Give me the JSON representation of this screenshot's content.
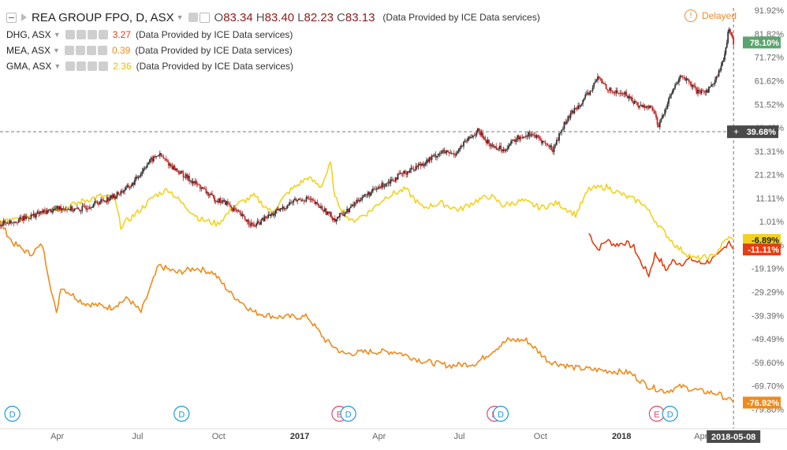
{
  "chart_data": {
    "type": "line",
    "title": "REA GROUP FPO, D, ASX",
    "xlabel": "",
    "ylabel": "",
    "y_unit": "%",
    "ylim": [
      -80,
      93
    ],
    "grid": false,
    "legend": "top-left",
    "x_range": [
      "2016-01-27",
      "2018-05-15"
    ],
    "x_tick_labels": [
      {
        "date": "2016-04-01",
        "label": "Apr"
      },
      {
        "date": "2016-07-01",
        "label": "Jul"
      },
      {
        "date": "2016-10-01",
        "label": "Oct"
      },
      {
        "date": "2017-01-01",
        "label": "2017"
      },
      {
        "date": "2017-04-01",
        "label": "Apr"
      },
      {
        "date": "2017-07-01",
        "label": "Jul"
      },
      {
        "date": "2017-10-01",
        "label": "Oct"
      },
      {
        "date": "2018-01-01",
        "label": "2018"
      },
      {
        "date": "2018-04-01",
        "label": "Apr"
      }
    ],
    "y_tick_labels": [
      "91.92%",
      "81.82%",
      "71.72%",
      "61.62%",
      "51.52%",
      "41.42%",
      "31.31%",
      "21.21%",
      "11.11%",
      "1.01%",
      "-9.09%",
      "-19.19%",
      "-29.29%",
      "-39.39%",
      "-49.49%",
      "-59.60%",
      "-69.70%",
      "-79.80%"
    ],
    "crosshair": {
      "date_label": "2018-05-08",
      "value_label": "39.68%",
      "value": 39.68
    },
    "event_markers": [
      {
        "date": "2016-02-10",
        "letter": "D",
        "color": "#1a9ad6"
      },
      {
        "date": "2016-08-20",
        "letter": "D",
        "color": "#1a9ad6"
      },
      {
        "date": "2017-02-15",
        "letter": "E",
        "color": "#e0456e"
      },
      {
        "date": "2017-02-25",
        "letter": "D",
        "color": "#1a9ad6"
      },
      {
        "date": "2017-08-10",
        "letter": "E",
        "color": "#e0456e"
      },
      {
        "date": "2017-08-17",
        "letter": "D",
        "color": "#1a9ad6"
      },
      {
        "date": "2018-02-10",
        "letter": "E",
        "color": "#e0456e"
      },
      {
        "date": "2018-02-25",
        "letter": "D",
        "color": "#1a9ad6"
      }
    ],
    "main_series": {
      "name": "REA GROUP FPO",
      "style": "candlestick",
      "color_up": "#333333",
      "color_down": "#c62828",
      "last_label": "78.10%",
      "badge_color": "#5aa56e",
      "points": [
        [
          "2016-01-27",
          0
        ],
        [
          "2016-02-20",
          2
        ],
        [
          "2016-03-15",
          5
        ],
        [
          "2016-04-05",
          7
        ],
        [
          "2016-04-25",
          6
        ],
        [
          "2016-05-15",
          9
        ],
        [
          "2016-06-05",
          12
        ],
        [
          "2016-06-25",
          17
        ],
        [
          "2016-07-12",
          26
        ],
        [
          "2016-07-25",
          30
        ],
        [
          "2016-08-08",
          25
        ],
        [
          "2016-08-22",
          21
        ],
        [
          "2016-09-10",
          16
        ],
        [
          "2016-09-25",
          11
        ],
        [
          "2016-10-10",
          9
        ],
        [
          "2016-10-25",
          4
        ],
        [
          "2016-11-10",
          -1
        ],
        [
          "2016-11-25",
          3
        ],
        [
          "2016-12-10",
          6
        ],
        [
          "2016-12-25",
          10
        ],
        [
          "2017-01-10",
          11
        ],
        [
          "2017-01-25",
          7
        ],
        [
          "2017-02-10",
          2
        ],
        [
          "2017-02-25",
          6
        ],
        [
          "2017-03-10",
          11
        ],
        [
          "2017-03-25",
          14
        ],
        [
          "2017-04-10",
          18
        ],
        [
          "2017-04-25",
          21
        ],
        [
          "2017-05-10",
          24
        ],
        [
          "2017-05-25",
          27
        ],
        [
          "2017-06-10",
          31
        ],
        [
          "2017-06-25",
          30
        ],
        [
          "2017-07-10",
          36
        ],
        [
          "2017-07-22",
          40
        ],
        [
          "2017-08-05",
          34
        ],
        [
          "2017-08-20",
          32
        ],
        [
          "2017-09-05",
          37
        ],
        [
          "2017-09-20",
          39
        ],
        [
          "2017-10-05",
          35
        ],
        [
          "2017-10-15",
          32
        ],
        [
          "2017-10-28",
          43
        ],
        [
          "2017-11-10",
          50
        ],
        [
          "2017-11-25",
          56
        ],
        [
          "2017-12-05",
          63
        ],
        [
          "2017-12-20",
          57
        ],
        [
          "2018-01-05",
          56
        ],
        [
          "2018-01-20",
          51
        ],
        [
          "2018-02-05",
          50
        ],
        [
          "2018-02-12",
          42
        ],
        [
          "2018-02-25",
          55
        ],
        [
          "2018-03-10",
          64
        ],
        [
          "2018-03-20",
          60
        ],
        [
          "2018-03-30",
          56
        ],
        [
          "2018-04-10",
          58
        ],
        [
          "2018-04-20",
          64
        ],
        [
          "2018-04-28",
          72
        ],
        [
          "2018-05-03",
          85
        ],
        [
          "2018-05-08",
          78
        ]
      ]
    },
    "series": [
      {
        "name": "DHG, ASX",
        "value": "3.27",
        "note": "(Data Provided by ICE Data services)",
        "color": "#e33f11",
        "last_label": "-11.11%",
        "points": [
          [
            "2017-11-25",
            -4
          ],
          [
            "2017-12-05",
            -11
          ],
          [
            "2017-12-15",
            -7
          ],
          [
            "2017-12-25",
            -9
          ],
          [
            "2018-01-05",
            -8
          ],
          [
            "2018-01-15",
            -10
          ],
          [
            "2018-01-22",
            -16
          ],
          [
            "2018-02-01",
            -22
          ],
          [
            "2018-02-08",
            -13
          ],
          [
            "2018-02-15",
            -16
          ],
          [
            "2018-02-20",
            -20
          ],
          [
            "2018-02-28",
            -16
          ],
          [
            "2018-03-10",
            -17
          ],
          [
            "2018-03-20",
            -15
          ],
          [
            "2018-04-01",
            -17
          ],
          [
            "2018-04-10",
            -16
          ],
          [
            "2018-04-20",
            -14
          ],
          [
            "2018-04-28",
            -10
          ],
          [
            "2018-05-03",
            -7
          ],
          [
            "2018-05-08",
            -11
          ]
        ]
      },
      {
        "name": "MEA, ASX",
        "value": "0.39",
        "note": "(Data Provided by ICE Data services)",
        "color": "#f08a1b",
        "last_label": "-76.92%",
        "points": [
          [
            "2016-01-27",
            1
          ],
          [
            "2016-02-10",
            -8
          ],
          [
            "2016-03-01",
            -13
          ],
          [
            "2016-03-15",
            -9
          ],
          [
            "2016-03-31",
            -39
          ],
          [
            "2016-04-05",
            -27
          ],
          [
            "2016-05-01",
            -34
          ],
          [
            "2016-06-01",
            -36
          ],
          [
            "2016-06-20",
            -32
          ],
          [
            "2016-07-05",
            -38
          ],
          [
            "2016-07-25",
            -18
          ],
          [
            "2016-08-15",
            -21
          ],
          [
            "2016-09-05",
            -19
          ],
          [
            "2016-09-25",
            -21
          ],
          [
            "2016-10-15",
            -30
          ],
          [
            "2016-11-10",
            -38
          ],
          [
            "2016-12-05",
            -40
          ],
          [
            "2017-01-10",
            -40
          ],
          [
            "2017-01-30",
            -50
          ],
          [
            "2017-02-20",
            -56
          ],
          [
            "2017-03-20",
            -55
          ],
          [
            "2017-04-20",
            -55
          ],
          [
            "2017-05-20",
            -59
          ],
          [
            "2017-06-20",
            -61
          ],
          [
            "2017-07-20",
            -60
          ],
          [
            "2017-08-10",
            -54
          ],
          [
            "2017-08-25",
            -50
          ],
          [
            "2017-09-15",
            -50
          ],
          [
            "2017-10-10",
            -59
          ],
          [
            "2017-11-10",
            -62
          ],
          [
            "2017-12-10",
            -63
          ],
          [
            "2018-01-10",
            -64
          ],
          [
            "2018-02-01",
            -70
          ],
          [
            "2018-02-20",
            -72
          ],
          [
            "2018-03-10",
            -70
          ],
          [
            "2018-04-01",
            -72
          ],
          [
            "2018-04-20",
            -73
          ],
          [
            "2018-05-08",
            -76.9
          ]
        ]
      },
      {
        "name": "GMA, ASX",
        "value": "2.36",
        "note": "(Data Provided by ICE Data services)",
        "color": "#f2d21e",
        "last_label": "-6.89%",
        "points": [
          [
            "2016-01-27",
            1
          ],
          [
            "2016-02-20",
            2
          ],
          [
            "2016-03-15",
            6
          ],
          [
            "2016-04-10",
            7
          ],
          [
            "2016-05-01",
            10
          ],
          [
            "2016-05-20",
            12
          ],
          [
            "2016-06-05",
            11
          ],
          [
            "2016-06-12",
            -1
          ],
          [
            "2016-07-01",
            5
          ],
          [
            "2016-07-20",
            12
          ],
          [
            "2016-08-05",
            15
          ],
          [
            "2016-08-20",
            9
          ],
          [
            "2016-09-10",
            2
          ],
          [
            "2016-09-30",
            0
          ],
          [
            "2016-10-20",
            8
          ],
          [
            "2016-11-10",
            12
          ],
          [
            "2016-11-30",
            5
          ],
          [
            "2016-12-20",
            14
          ],
          [
            "2017-01-10",
            20
          ],
          [
            "2017-01-25",
            16
          ],
          [
            "2017-02-05",
            26
          ],
          [
            "2017-02-10",
            11
          ],
          [
            "2017-02-28",
            1
          ],
          [
            "2017-03-20",
            5
          ],
          [
            "2017-04-10",
            12
          ],
          [
            "2017-05-01",
            15
          ],
          [
            "2017-05-20",
            7
          ],
          [
            "2017-06-10",
            9
          ],
          [
            "2017-07-01",
            6
          ],
          [
            "2017-07-20",
            10
          ],
          [
            "2017-08-05",
            12
          ],
          [
            "2017-08-20",
            8
          ],
          [
            "2017-09-10",
            10
          ],
          [
            "2017-10-01",
            7
          ],
          [
            "2017-10-20",
            9
          ],
          [
            "2017-11-10",
            4
          ],
          [
            "2017-11-25",
            15
          ],
          [
            "2017-12-15",
            16
          ],
          [
            "2018-01-05",
            12
          ],
          [
            "2018-01-25",
            9
          ],
          [
            "2018-02-15",
            -2
          ],
          [
            "2018-03-05",
            -10
          ],
          [
            "2018-03-25",
            -15
          ],
          [
            "2018-04-15",
            -14
          ],
          [
            "2018-05-01",
            -6
          ],
          [
            "2018-05-08",
            -6.9
          ]
        ]
      }
    ]
  },
  "legend": {
    "main_title": "REA GROUP FPO, D, ASX",
    "ohlc": {
      "o_label": "O",
      "o": "83.34",
      "h_label": "H",
      "h": "83.40",
      "l_label": "L",
      "l": "82.23",
      "c_label": "C",
      "c": "83.13",
      "note": "(Data Provided by ICE Data services)"
    }
  },
  "status": {
    "delayed": "Delayed",
    "delayed_icon": "exclamation-circle-icon",
    "delayed_color": "#ef8a32"
  }
}
